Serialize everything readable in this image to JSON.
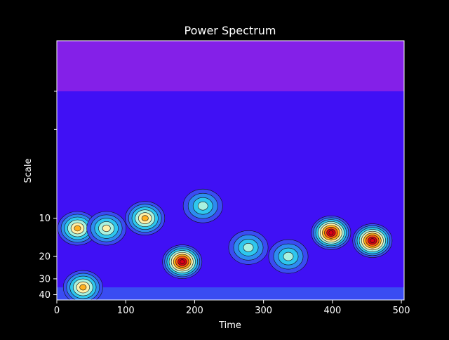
{
  "chart_data": {
    "type": "heatmap",
    "title": "Power Spectrum",
    "xlabel": "Time",
    "ylabel": "Scale",
    "xlim": [
      0,
      504
    ],
    "x_ticks": [
      0,
      100,
      200,
      300,
      400,
      500
    ],
    "y_scale": "log",
    "y_inverted": true,
    "ylim": [
      0.4,
      44
    ],
    "y_ticks": [
      10,
      20,
      30,
      40
    ],
    "y_unlabeled_ticks": [
      1,
      2
    ],
    "grid": false,
    "colormap": "rainbow",
    "colors": {
      "background": "#000000",
      "text": "#ffffff",
      "cone_band": "#8420e8",
      "low": "#4010f5",
      "level_2": "#3a4cf2",
      "level_3": "#2d8cf0",
      "level_4": "#2ec7ee",
      "level_5": "#a8f2e0",
      "level_6": "#fff0a8",
      "level_7": "#ffb020",
      "level_8": "#ff5a10",
      "peak": "#d80018"
    },
    "hotspots": [
      {
        "time": 30,
        "scale": 12,
        "level": 6
      },
      {
        "time": 72,
        "scale": 12,
        "level": 5
      },
      {
        "time": 128,
        "scale": 10,
        "level": 6
      },
      {
        "time": 182,
        "scale": 22,
        "level": 9
      },
      {
        "time": 212,
        "scale": 8,
        "level": 4
      },
      {
        "time": 278,
        "scale": 17,
        "level": 4
      },
      {
        "time": 336,
        "scale": 20,
        "level": 4
      },
      {
        "time": 398,
        "scale": 13,
        "level": 9
      },
      {
        "time": 458,
        "scale": 15,
        "level": 9
      },
      {
        "time": 38,
        "scale": 35,
        "level": 6
      }
    ]
  }
}
